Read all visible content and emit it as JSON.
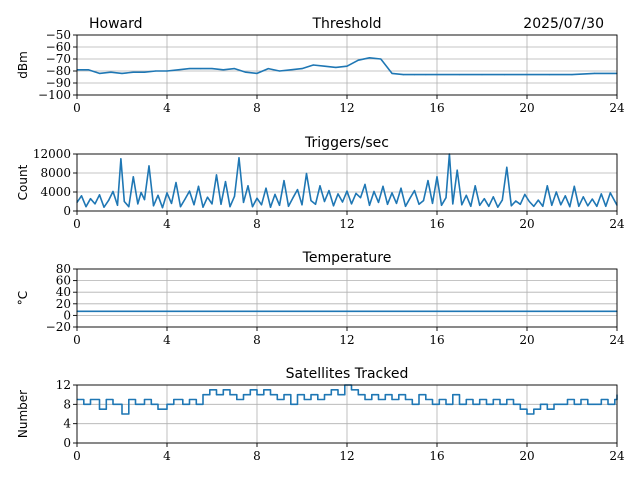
{
  "header": {
    "station": "Howard",
    "date": "2025/07/30"
  },
  "chart_data": [
    {
      "type": "line",
      "title": "Threshold",
      "ylabel": "dBm",
      "xlim": [
        0,
        24
      ],
      "ylim": [
        -100,
        -50
      ],
      "x_ticks": [
        "0",
        "4",
        "8",
        "12",
        "16",
        "20",
        "24"
      ],
      "y_ticks": [
        "−50",
        "−60",
        "−70",
        "−80",
        "−90",
        "−100"
      ],
      "grid": true,
      "color": "#1f77b4",
      "x": [
        0,
        0.5,
        1,
        1.5,
        2,
        2.5,
        3,
        3.5,
        4,
        4.5,
        5,
        5.5,
        6,
        6.5,
        7,
        7.5,
        8,
        8.5,
        9,
        9.5,
        10,
        10.5,
        11,
        11.5,
        12,
        12.5,
        13,
        13.5,
        14,
        14.5,
        15,
        15.5,
        16,
        17,
        18,
        19,
        20,
        21,
        22,
        23,
        24
      ],
      "y": [
        -79,
        -79,
        -82,
        -81,
        -82,
        -81,
        -81,
        -80,
        -80,
        -79,
        -78,
        -78,
        -78,
        -79,
        -78,
        -81,
        -82,
        -78,
        -80,
        -79,
        -78,
        -75,
        -76,
        -77,
        -76,
        -71,
        -69,
        -70,
        -82,
        -83,
        -83,
        -83,
        -83,
        -83,
        -83,
        -83,
        -83,
        -83,
        -83,
        -82,
        -82
      ]
    },
    {
      "type": "line",
      "title": "Triggers/sec",
      "ylabel": "Count",
      "xlim": [
        0,
        24
      ],
      "ylim": [
        0,
        12000
      ],
      "x_ticks": [
        "0",
        "4",
        "8",
        "12",
        "16",
        "20",
        "24"
      ],
      "y_ticks": [
        "12000",
        "8000",
        "4000",
        "0"
      ],
      "grid": true,
      "color": "#1f77b4",
      "x": [
        0,
        0.2,
        0.4,
        0.6,
        0.8,
        1.0,
        1.2,
        1.4,
        1.6,
        1.8,
        1.95,
        2.1,
        2.3,
        2.5,
        2.7,
        2.85,
        3.0,
        3.2,
        3.4,
        3.6,
        3.8,
        4.0,
        4.2,
        4.4,
        4.6,
        4.8,
        5.0,
        5.2,
        5.4,
        5.6,
        5.8,
        6.0,
        6.2,
        6.4,
        6.6,
        6.8,
        7.0,
        7.2,
        7.4,
        7.6,
        7.8,
        8.0,
        8.2,
        8.4,
        8.6,
        8.8,
        9.0,
        9.2,
        9.4,
        9.6,
        9.8,
        10.0,
        10.2,
        10.4,
        10.6,
        10.8,
        11.0,
        11.2,
        11.4,
        11.6,
        11.8,
        12.0,
        12.2,
        12.4,
        12.6,
        12.8,
        13.0,
        13.2,
        13.4,
        13.6,
        13.8,
        14.0,
        14.2,
        14.4,
        14.6,
        14.8,
        15.0,
        15.2,
        15.4,
        15.6,
        15.8,
        16.0,
        16.2,
        16.4,
        16.55,
        16.7,
        16.9,
        17.1,
        17.3,
        17.5,
        17.7,
        17.9,
        18.1,
        18.3,
        18.5,
        18.7,
        18.9,
        19.1,
        19.3,
        19.5,
        19.7,
        19.9,
        20.1,
        20.3,
        20.5,
        20.7,
        20.9,
        21.1,
        21.3,
        21.5,
        21.7,
        21.9,
        22.1,
        22.3,
        22.5,
        22.7,
        22.9,
        23.1,
        23.3,
        23.5,
        23.7,
        24.0
      ],
      "y": [
        1800,
        3200,
        900,
        2600,
        1500,
        3400,
        800,
        2200,
        4100,
        1200,
        11000,
        2000,
        900,
        7200,
        1500,
        3900,
        2400,
        9500,
        1100,
        3300,
        700,
        3800,
        1600,
        6000,
        900,
        2500,
        4200,
        1300,
        5200,
        800,
        2900,
        1500,
        7600,
        1400,
        6200,
        900,
        3100,
        11200,
        1800,
        5300,
        900,
        2700,
        1300,
        4800,
        800,
        3500,
        1200,
        6400,
        1000,
        2800,
        4500,
        1300,
        7900,
        2200,
        1400,
        5300,
        2000,
        4300,
        1100,
        3600,
        1900,
        4200,
        1500,
        3700,
        2800,
        5600,
        1200,
        4100,
        1800,
        5200,
        1400,
        3800,
        1600,
        4800,
        1000,
        2700,
        4300,
        1400,
        2200,
        6400,
        1600,
        7200,
        1200,
        2800,
        12000,
        1500,
        8600,
        1300,
        3300,
        1000,
        5300,
        1200,
        2600,
        1000,
        3000,
        800,
        2300,
        9200,
        1100,
        2100,
        1400,
        3500,
        2000,
        1000,
        2300,
        1000,
        5300,
        1200,
        4000,
        1300,
        3200,
        900,
        5200,
        1000,
        3000,
        1100,
        2500,
        1000,
        3600,
        1000,
        3800,
        1200
      ]
    },
    {
      "type": "line",
      "title": "Temperature",
      "ylabel": "°C",
      "xlim": [
        0,
        24
      ],
      "ylim": [
        -20,
        80
      ],
      "x_ticks": [
        "0",
        "4",
        "8",
        "12",
        "16",
        "20",
        "24"
      ],
      "y_ticks": [
        "80",
        "60",
        "40",
        "20",
        "0",
        "−20"
      ],
      "grid": true,
      "color": "#1f77b4",
      "x": [
        0,
        24
      ],
      "y": [
        7,
        7
      ]
    },
    {
      "type": "line",
      "title": "Satellites Tracked",
      "ylabel": "Number",
      "xlim": [
        0,
        24
      ],
      "ylim": [
        0,
        12
      ],
      "x_ticks": [
        "0",
        "4",
        "8",
        "12",
        "16",
        "20",
        "24"
      ],
      "y_ticks": [
        "12",
        "8",
        "4",
        "0"
      ],
      "grid": true,
      "color": "#1f77b4",
      "step": true,
      "x": [
        0,
        0.3,
        0.6,
        1.0,
        1.3,
        1.6,
        2.0,
        2.3,
        2.6,
        3.0,
        3.3,
        3.6,
        4.0,
        4.3,
        4.7,
        5.0,
        5.3,
        5.6,
        5.9,
        6.2,
        6.5,
        6.8,
        7.1,
        7.4,
        7.7,
        8.0,
        8.3,
        8.6,
        8.9,
        9.2,
        9.5,
        9.8,
        10.1,
        10.4,
        10.7,
        11.0,
        11.3,
        11.6,
        11.9,
        12.2,
        12.5,
        12.8,
        13.1,
        13.4,
        13.7,
        14.0,
        14.3,
        14.6,
        14.9,
        15.2,
        15.5,
        15.8,
        16.1,
        16.4,
        16.7,
        17.0,
        17.3,
        17.6,
        17.9,
        18.2,
        18.5,
        18.8,
        19.1,
        19.4,
        19.7,
        20.0,
        20.3,
        20.6,
        20.9,
        21.2,
        21.5,
        21.8,
        22.1,
        22.4,
        22.7,
        23.0,
        23.3,
        23.6,
        23.9,
        24.0
      ],
      "y": [
        9,
        8,
        9,
        7,
        9,
        8,
        6,
        9,
        8,
        9,
        8,
        7,
        8,
        9,
        8,
        9,
        8,
        10,
        11,
        10,
        11,
        10,
        9,
        10,
        11,
        10,
        11,
        10,
        9,
        10,
        8,
        10,
        9,
        10,
        9,
        10,
        11,
        10,
        12,
        11,
        10,
        9,
        10,
        9,
        10,
        9,
        10,
        9,
        8,
        10,
        9,
        8,
        9,
        8,
        10,
        8,
        9,
        8,
        9,
        8,
        9,
        8,
        9,
        8,
        7,
        6,
        7,
        8,
        7,
        8,
        8,
        9,
        8,
        9,
        8,
        8,
        9,
        8,
        9,
        10
      ]
    }
  ]
}
